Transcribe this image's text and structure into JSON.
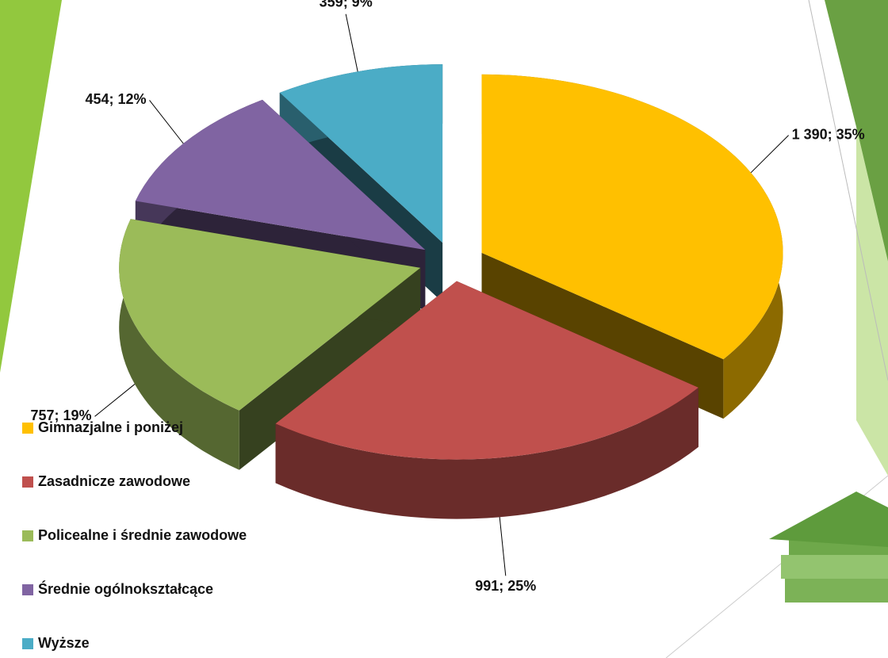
{
  "chart_data": {
    "type": "pie3d",
    "categories": [
      "Gimnazjalne i poniżej",
      "Zasadnicze zawodowe",
      "Policealne i średnie zawodowe",
      "Średnie ogólnokształcące",
      "Wyższe"
    ],
    "values": [
      1390,
      991,
      757,
      454,
      359
    ],
    "value_labels": [
      "1 390; 35%",
      "991; 25%",
      "757; 19%",
      "454; 12%",
      "359; 9%"
    ],
    "colors": [
      "#ffc000",
      "#c0504d",
      "#9bbb59",
      "#8064a2",
      "#4bacc6"
    ],
    "legend": "bottom-left"
  }
}
